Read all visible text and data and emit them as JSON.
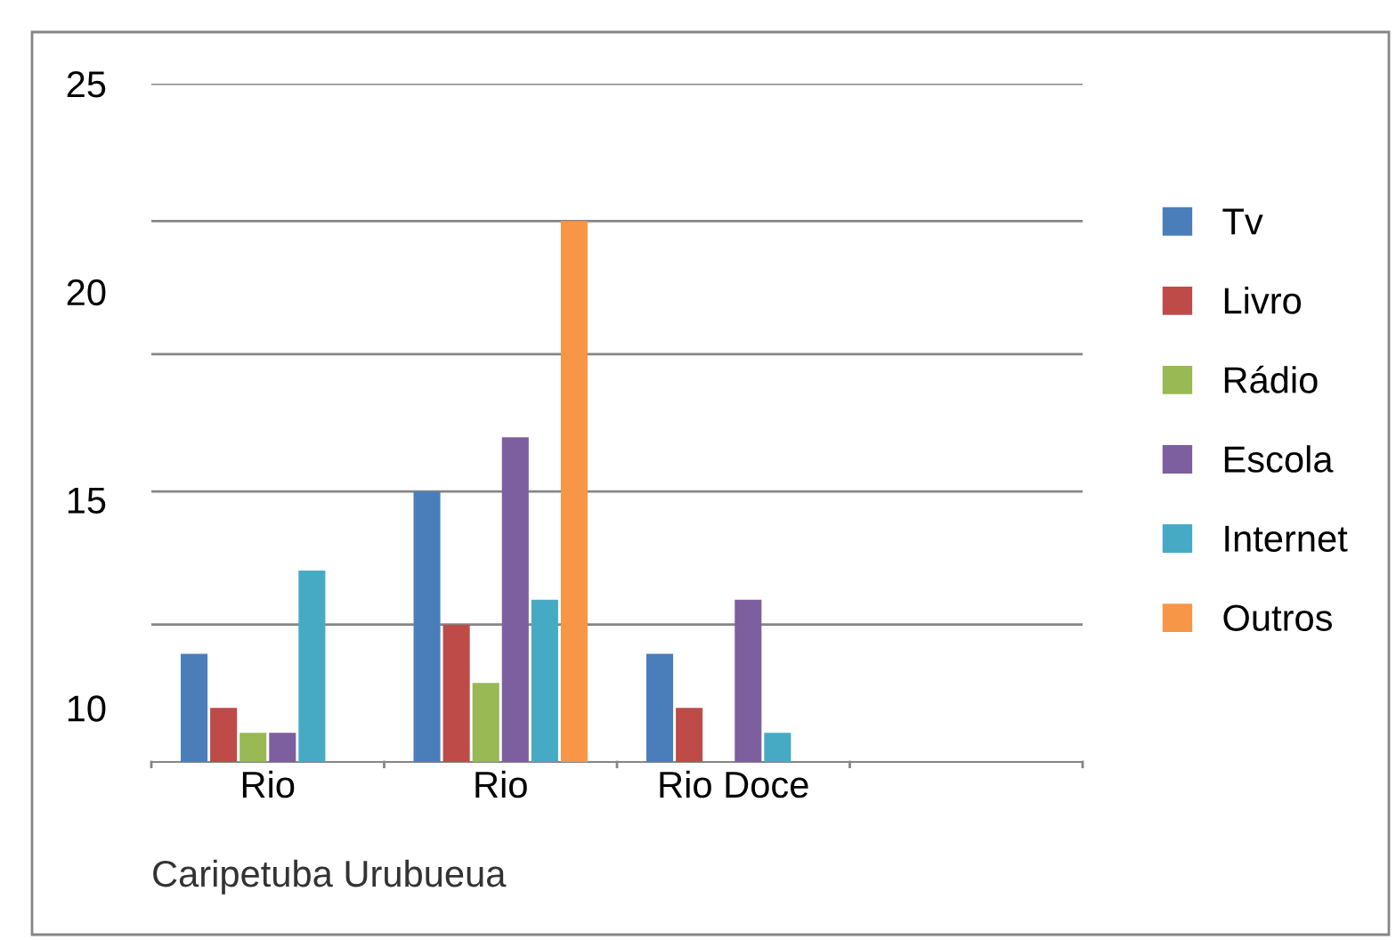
{
  "chart_data": {
    "type": "bar",
    "categories": [
      "Rio",
      "Rio",
      "Rio Doce",
      null
    ],
    "series": [
      {
        "name": "Tv",
        "color": "#4a7ebb",
        "values": [
          11.3,
          15.2,
          11.3,
          null
        ]
      },
      {
        "name": "Livro",
        "color": "#be4b48",
        "values": [
          10.0,
          12.0,
          10.0,
          null
        ]
      },
      {
        "name": "Rádio",
        "color": "#98b954",
        "values": [
          9.4,
          10.6,
          null,
          null
        ]
      },
      {
        "name": "Escola",
        "color": "#7d5fa0",
        "values": [
          9.4,
          16.5,
          12.6,
          null
        ]
      },
      {
        "name": "Internet",
        "color": "#46aac5",
        "values": [
          13.3,
          12.6,
          9.4,
          null
        ]
      },
      {
        "name": "Outros",
        "color": "#f79646",
        "values": [
          null,
          21.7,
          null,
          null
        ]
      }
    ],
    "ylim": [
      8.7,
      25
    ],
    "yticks": [
      10,
      15,
      20,
      25
    ],
    "ref_lines": [
      {
        "axis": "y",
        "value": 25,
        "color": "#868686"
      },
      {
        "axis": "y",
        "value": 21.7,
        "color": "#868686"
      },
      {
        "axis": "y",
        "value": 18.5,
        "color": "#868686"
      },
      {
        "axis": "y",
        "value": 15.2,
        "color": "#868686"
      },
      {
        "axis": "y",
        "value": 12.0,
        "color": "#868686"
      }
    ],
    "annotations": [
      "Caripetuba Urubueua"
    ],
    "legend": "right"
  }
}
